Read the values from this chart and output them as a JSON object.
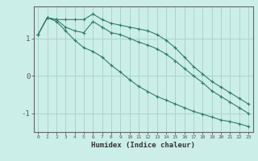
{
  "xlabel": "Humidex (Indice chaleur)",
  "bg_color": "#cceee8",
  "line_color": "#2e7d6e",
  "grid_color": "#aad4ce",
  "xlim": [
    -0.5,
    23.5
  ],
  "ylim": [
    -1.5,
    1.85
  ],
  "x_ticks": [
    0,
    1,
    2,
    3,
    4,
    5,
    6,
    7,
    8,
    9,
    10,
    11,
    12,
    13,
    14,
    15,
    16,
    17,
    18,
    19,
    20,
    21,
    22,
    23
  ],
  "y_ticks": [
    -1,
    0,
    1
  ],
  "curve1_x": [
    0,
    1,
    2,
    3,
    4,
    5,
    6,
    7,
    8,
    9,
    10,
    11,
    12,
    13,
    14,
    15,
    16,
    17,
    18,
    19,
    20,
    21,
    22,
    23
  ],
  "curve1_y": [
    1.1,
    1.55,
    1.5,
    1.5,
    1.5,
    1.5,
    1.65,
    1.5,
    1.4,
    1.35,
    1.3,
    1.25,
    1.2,
    1.1,
    0.95,
    0.75,
    0.5,
    0.25,
    0.05,
    -0.15,
    -0.3,
    -0.45,
    -0.6,
    -0.75
  ],
  "curve2_x": [
    0,
    1,
    2,
    3,
    4,
    5,
    6,
    7,
    8,
    9,
    10,
    11,
    12,
    13,
    14,
    15,
    16,
    17,
    18,
    19,
    20,
    21,
    22,
    23
  ],
  "curve2_y": [
    1.1,
    1.55,
    1.5,
    1.3,
    1.2,
    1.15,
    1.45,
    1.3,
    1.15,
    1.1,
    1.0,
    0.9,
    0.82,
    0.72,
    0.58,
    0.4,
    0.2,
    0.0,
    -0.18,
    -0.4,
    -0.55,
    -0.7,
    -0.85,
    -1.0
  ],
  "curve3_x": [
    0,
    1,
    2,
    3,
    4,
    5,
    6,
    7,
    8,
    9,
    10,
    11,
    12,
    13,
    14,
    15,
    16,
    17,
    18,
    19,
    20,
    21,
    22,
    23
  ],
  "curve3_y": [
    1.1,
    1.55,
    1.45,
    1.2,
    0.95,
    0.75,
    0.65,
    0.5,
    0.28,
    0.1,
    -0.1,
    -0.28,
    -0.42,
    -0.55,
    -0.65,
    -0.75,
    -0.85,
    -0.95,
    -1.02,
    -1.1,
    -1.18,
    -1.22,
    -1.28,
    -1.35
  ]
}
